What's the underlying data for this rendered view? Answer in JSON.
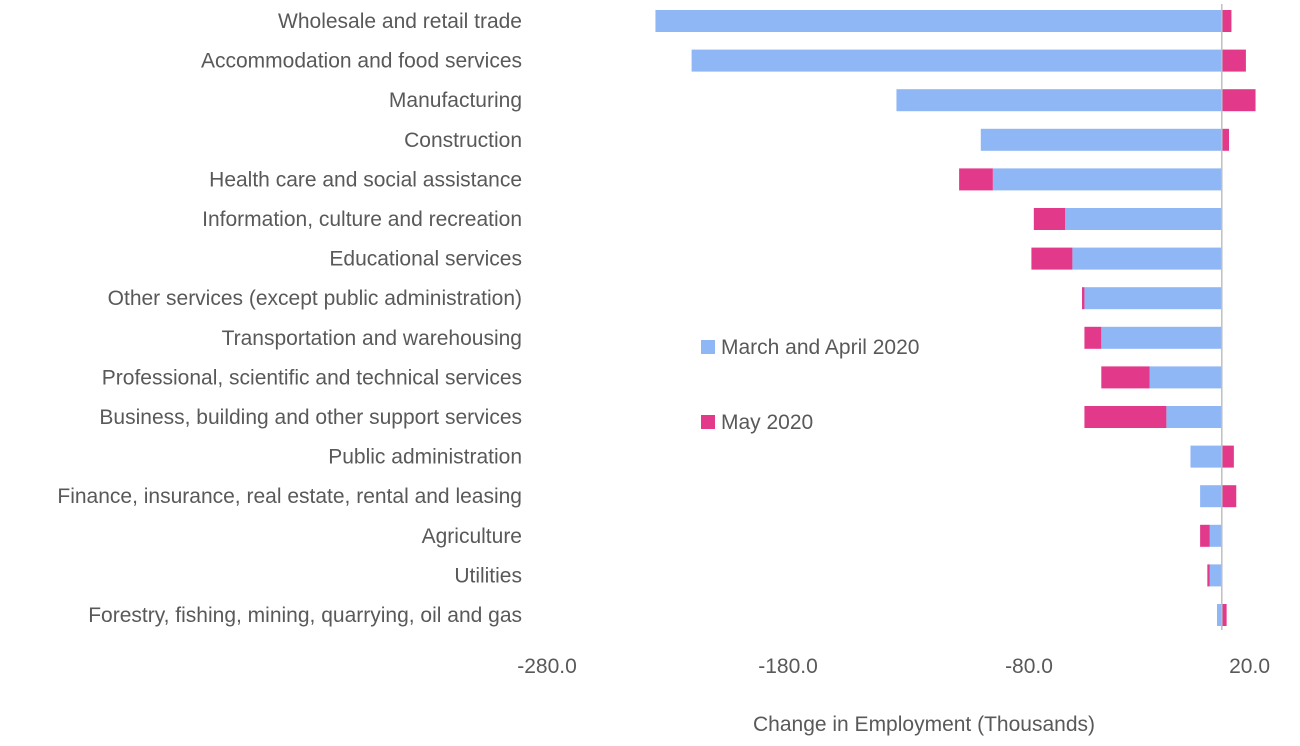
{
  "chart_data": {
    "type": "bar",
    "orientation": "horizontal",
    "stacked": true,
    "categories": [
      "Wholesale and retail trade",
      "Accommodation and food services",
      "Manufacturing",
      "Construction",
      "Health care and social assistance",
      "Information, culture and recreation",
      "Educational services",
      "Other services (except public administration)",
      "Transportation and warehousing",
      "Professional, scientific and technical services",
      "Business, building and other support services",
      "Public administration",
      "Finance, insurance, real estate, rental and leasing",
      "Agriculture",
      "Utilities",
      "Forestry, fishing, mining, quarrying, oil and gas"
    ],
    "series": [
      {
        "name": "March and April 2020",
        "color": "#8fb6f5",
        "values": [
          -235,
          -220,
          -135,
          -100,
          -95,
          -65,
          -62,
          -57,
          -50,
          -30,
          -23,
          -13,
          -9,
          -5,
          -5,
          -2
        ]
      },
      {
        "name": "May 2020",
        "color": "#e3398b",
        "values": [
          4,
          10,
          14,
          3,
          -14,
          -13,
          -17,
          -1,
          -7,
          -20,
          -34,
          5,
          6,
          -4,
          -1,
          2
        ]
      }
    ],
    "xlabel": "Change in Employment (Thousands)",
    "ylabel": "",
    "xlim": [
      -280,
      20
    ],
    "xticks": [
      "-280.0",
      "-180.0",
      "-80.0",
      "20.0"
    ],
    "grid": false,
    "legend_position": "center-right"
  }
}
